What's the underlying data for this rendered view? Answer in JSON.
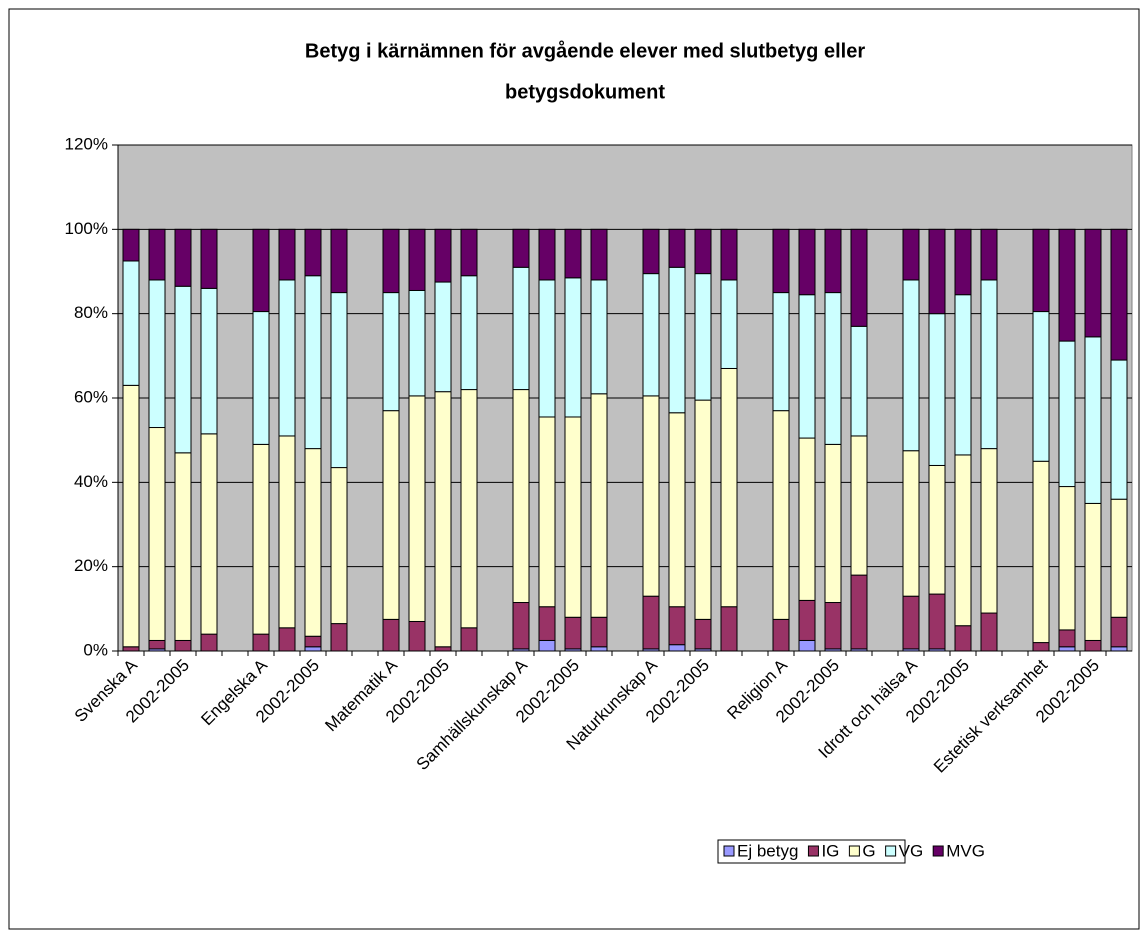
{
  "chart_data": {
    "type": "stacked_bar",
    "title": [
      "Betyg i kärnämnen för avgående elever med slutbetyg eller",
      "betygsdokument"
    ],
    "categories": [
      "Svenska A",
      null,
      "2002-2005",
      null,
      null,
      "Engelska A",
      null,
      "2002-2005",
      null,
      null,
      "Matematik A",
      null,
      "2002-2005",
      null,
      null,
      "Samhällskunskap A",
      null,
      "2002-2005",
      null,
      null,
      "Naturkunskap A",
      null,
      "2002-2005",
      null,
      null,
      "Religion A",
      null,
      "2002-2005",
      null,
      null,
      "Idrott och hälsa A",
      null,
      "2002-2005",
      null,
      null,
      "Estetisk verksamhet",
      null,
      "2002-2005",
      null
    ],
    "series": [
      {
        "name": "Ej betyg",
        "color": "#9999ff",
        "values": [
          0,
          0.5,
          0,
          0,
          null,
          0,
          0,
          1,
          0,
          null,
          0,
          0,
          0,
          0,
          null,
          0.5,
          2.5,
          0.5,
          1,
          null,
          0.5,
          1.5,
          0.5,
          0,
          null,
          0,
          2.5,
          0.5,
          0.5,
          null,
          0.5,
          0.5,
          0,
          0,
          null,
          0,
          1,
          0,
          1
        ]
      },
      {
        "name": "IG",
        "color": "#993366",
        "values": [
          1,
          2,
          2.5,
          4,
          null,
          4,
          5.5,
          2.5,
          6.5,
          null,
          7.5,
          7,
          1,
          5.5,
          null,
          11,
          8,
          7.5,
          7,
          null,
          12.5,
          9,
          7,
          10.5,
          null,
          7.5,
          9.5,
          11,
          17.5,
          null,
          12.5,
          13,
          6,
          9,
          null,
          2,
          4,
          2.5,
          7
        ]
      },
      {
        "name": "G",
        "color": "#ffffcc",
        "values": [
          62,
          50.5,
          44.5,
          47.5,
          null,
          45,
          45.5,
          44.5,
          37,
          null,
          49.5,
          53.5,
          60.5,
          56.5,
          null,
          50.5,
          45,
          47.5,
          53,
          null,
          47.5,
          46,
          52,
          56.5,
          null,
          49.5,
          38.5,
          37.5,
          33,
          null,
          34.5,
          30.5,
          40.5,
          39,
          null,
          43,
          34,
          32.5,
          28
        ]
      },
      {
        "name": "VG",
        "color": "#ccffff",
        "values": [
          29.5,
          35,
          39.5,
          34.5,
          null,
          31.5,
          37,
          41,
          41.5,
          null,
          28,
          25,
          26,
          27,
          null,
          29,
          32.5,
          33,
          27,
          null,
          29,
          34.5,
          30,
          21,
          null,
          28,
          34,
          36,
          26,
          null,
          40.5,
          36,
          38,
          40,
          null,
          35.5,
          34.5,
          39.5,
          33
        ]
      },
      {
        "name": "MVG",
        "color": "#660066",
        "values": [
          7.5,
          12,
          13.5,
          14,
          null,
          19.5,
          12,
          11,
          15,
          null,
          15,
          14.5,
          12.5,
          11,
          null,
          9,
          12,
          11.5,
          12,
          null,
          10.5,
          9,
          10.5,
          12,
          null,
          15,
          15.5,
          15,
          23,
          null,
          12,
          20,
          15.5,
          12,
          null,
          19.5,
          26.5,
          25.5,
          31
        ]
      }
    ],
    "ylim": [
      0,
      120
    ],
    "yticks": [
      {
        "value": 0,
        "label": "0%"
      },
      {
        "value": 20,
        "label": "20%"
      },
      {
        "value": 40,
        "label": "40%"
      },
      {
        "value": 60,
        "label": "60%"
      },
      {
        "value": 80,
        "label": "80%"
      },
      {
        "value": 100,
        "label": "100%"
      },
      {
        "value": 120,
        "label": "120%"
      }
    ],
    "grid": true,
    "plot_background": "#c0c0c0",
    "legend": "bottom"
  }
}
